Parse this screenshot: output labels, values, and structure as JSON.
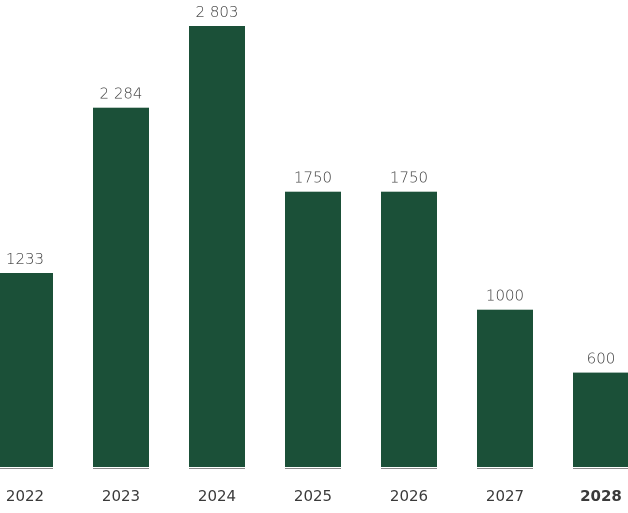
{
  "chart_data": {
    "type": "bar",
    "title": "",
    "xlabel": "",
    "ylabel": "",
    "ylim": [
      0,
      2803
    ],
    "grid": false,
    "legend": "none",
    "bar_color": "#1b5038",
    "highlight_color": "#54a651",
    "text_color": "#3a3a3a",
    "baseline_color": "#8a8a8a",
    "categories": [
      "2022",
      "2023",
      "2024",
      "2025",
      "2026",
      "2027",
      "2028"
    ],
    "value_labels": [
      "1233",
      "2 284",
      "2 803",
      "1750",
      "1750",
      "1000",
      "600"
    ],
    "values": [
      1233,
      2284,
      2803,
      1750,
      1750,
      1000,
      600
    ],
    "highlight_index": 6
  }
}
